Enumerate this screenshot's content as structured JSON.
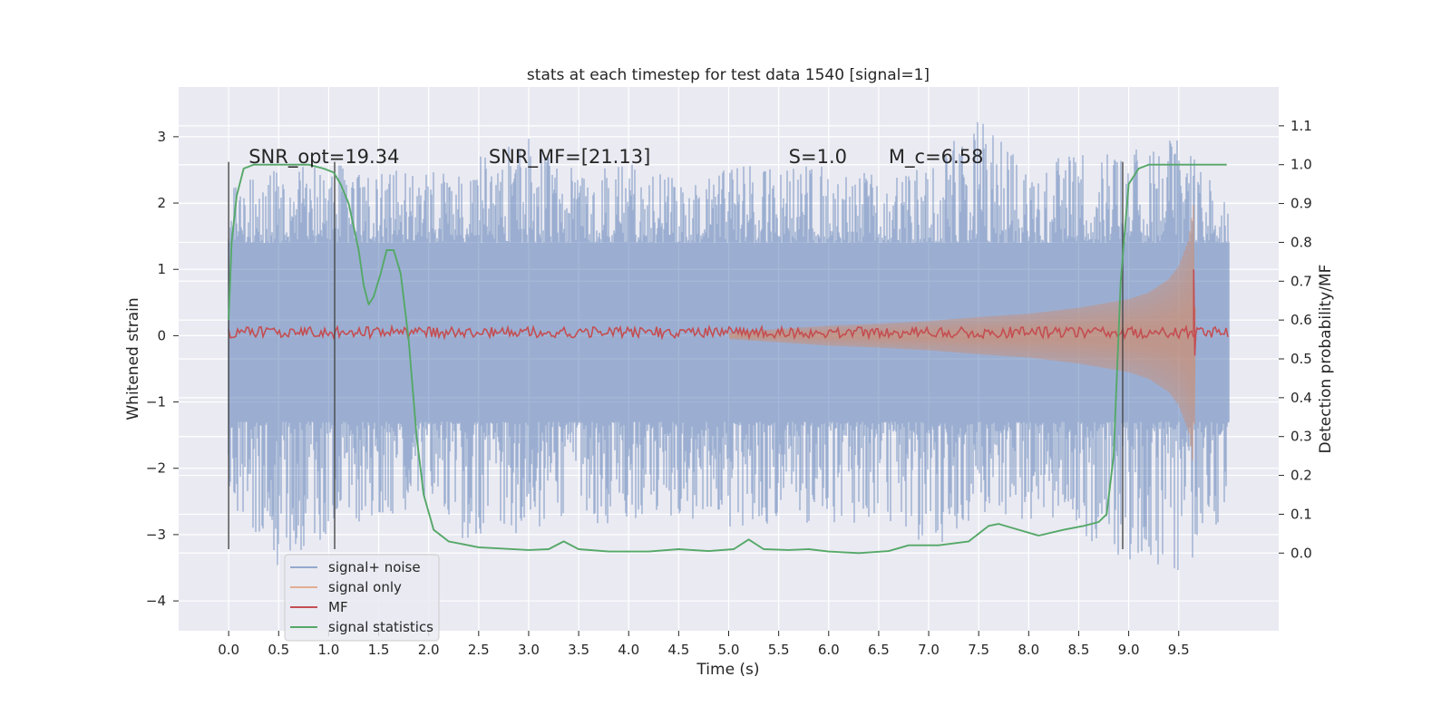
{
  "chart_data": {
    "type": "line",
    "title": "stats at each timestep for test data 1540 [signal=1]",
    "xlabel": "Time (s)",
    "ylabel_left": "Whitened strain",
    "ylabel_right": "Detection probability/MF",
    "xlim": [
      -0.5,
      10.5
    ],
    "ylim_left": [
      -4.45,
      3.75
    ],
    "ylim_right": [
      -0.2,
      1.2
    ],
    "x_ticks": [
      0.0,
      0.5,
      1.0,
      1.5,
      2.0,
      2.5,
      3.0,
      3.5,
      4.0,
      4.5,
      5.0,
      5.5,
      6.0,
      6.5,
      7.0,
      7.5,
      8.0,
      8.5,
      9.0,
      9.5
    ],
    "x_tick_labels": [
      "0.0",
      "0.5",
      "1.0",
      "1.5",
      "2.0",
      "2.5",
      "3.0",
      "3.5",
      "4.0",
      "4.5",
      "5.0",
      "5.5",
      "6.0",
      "6.5",
      "7.0",
      "7.5",
      "8.0",
      "8.5",
      "9.0",
      "9.5"
    ],
    "y_left_ticks": [
      -4,
      -3,
      -2,
      -1,
      0,
      1,
      2,
      3
    ],
    "y_left_tick_labels": [
      "−4",
      "−3",
      "−2",
      "−1",
      "0",
      "1",
      "2",
      "3"
    ],
    "y_right_ticks": [
      0.0,
      0.1,
      0.2,
      0.3,
      0.4,
      0.5,
      0.6,
      0.7,
      0.8,
      0.9,
      1.0,
      1.1
    ],
    "y_right_tick_labels": [
      "0.0",
      "0.1",
      "0.2",
      "0.3",
      "0.4",
      "0.5",
      "0.6",
      "0.7",
      "0.8",
      "0.9",
      "1.0",
      "1.1"
    ],
    "grid": true,
    "legend_position": "lower-left",
    "annotations": [
      {
        "text": "SNR_opt=19.34",
        "x": 0.2
      },
      {
        "text": "SNR_MF=[21.13]",
        "x": 2.6
      },
      {
        "text": "S=1.0",
        "x": 5.6
      },
      {
        "text": "M_c=6.58",
        "x": 6.6
      }
    ],
    "vertical_lines": [
      0.0,
      1.06,
      8.94
    ],
    "vertical_line_range_left": [
      -3.22,
      2.62
    ],
    "series": [
      {
        "name": "signal+ noise",
        "color": "#4c72b0",
        "axis": "left",
        "envelope_x": [
          0.0,
          0.5,
          1.0,
          1.5,
          2.0,
          2.5,
          3.0,
          3.5,
          4.0,
          4.5,
          5.0,
          5.5,
          6.0,
          6.5,
          7.0,
          7.5,
          8.0,
          8.5,
          9.0,
          9.5,
          10.0
        ],
        "envelope_upper": [
          2.3,
          2.6,
          2.6,
          2.5,
          2.5,
          2.7,
          3.0,
          2.5,
          2.6,
          2.4,
          2.6,
          2.5,
          2.6,
          2.4,
          2.6,
          3.3,
          2.6,
          2.8,
          2.8,
          3.0,
          2.0
        ],
        "envelope_lower": [
          -2.5,
          -3.5,
          -3.0,
          -2.8,
          -2.6,
          -3.3,
          -2.9,
          -2.8,
          -2.9,
          -2.7,
          -3.0,
          -2.8,
          -2.9,
          -2.8,
          -3.2,
          -2.9,
          -2.8,
          -3.0,
          -3.4,
          -3.7,
          -2.6
        ]
      },
      {
        "name": "signal only",
        "color": "#dd8452",
        "axis": "left",
        "x": [
          5.0,
          5.5,
          6.0,
          6.5,
          7.0,
          7.5,
          8.0,
          8.5,
          9.0,
          9.2,
          9.4,
          9.5,
          9.6,
          9.65,
          9.67
        ],
        "amplitude": [
          0.05,
          0.1,
          0.15,
          0.18,
          0.22,
          0.28,
          0.33,
          0.42,
          0.55,
          0.65,
          0.85,
          1.05,
          1.45,
          2.0,
          0.0
        ]
      },
      {
        "name": "MF",
        "color": "#c44e52",
        "axis": "left",
        "baseline": 0.05,
        "spike_x": 9.65,
        "spike_range": [
          -0.3,
          1.0
        ]
      },
      {
        "name": "signal statistics",
        "color": "#55a868",
        "axis": "right",
        "x": [
          0.0,
          0.03,
          0.08,
          0.15,
          0.25,
          0.4,
          0.6,
          0.8,
          0.95,
          1.05,
          1.12,
          1.2,
          1.3,
          1.35,
          1.4,
          1.45,
          1.52,
          1.58,
          1.65,
          1.72,
          1.8,
          1.88,
          1.95,
          2.05,
          2.2,
          2.5,
          3.0,
          3.2,
          3.35,
          3.5,
          3.8,
          4.2,
          4.5,
          4.8,
          5.05,
          5.2,
          5.35,
          5.6,
          5.8,
          6.0,
          6.3,
          6.6,
          6.8,
          7.1,
          7.4,
          7.6,
          7.7,
          7.9,
          8.1,
          8.35,
          8.55,
          8.7,
          8.78,
          8.85,
          8.92,
          9.0,
          9.1,
          9.2,
          9.4,
          9.6,
          9.8,
          9.98
        ],
        "y": [
          0.6,
          0.8,
          0.92,
          0.99,
          1.0,
          1.0,
          1.0,
          1.0,
          0.99,
          0.98,
          0.95,
          0.9,
          0.78,
          0.69,
          0.64,
          0.66,
          0.72,
          0.78,
          0.78,
          0.72,
          0.55,
          0.3,
          0.15,
          0.06,
          0.03,
          0.015,
          0.008,
          0.01,
          0.03,
          0.01,
          0.004,
          0.004,
          0.01,
          0.005,
          0.01,
          0.035,
          0.01,
          0.008,
          0.01,
          0.004,
          0.0,
          0.005,
          0.02,
          0.02,
          0.03,
          0.07,
          0.075,
          0.06,
          0.045,
          0.06,
          0.07,
          0.08,
          0.1,
          0.25,
          0.7,
          0.95,
          0.99,
          1.0,
          1.0,
          1.0,
          1.0,
          1.0
        ]
      }
    ]
  }
}
